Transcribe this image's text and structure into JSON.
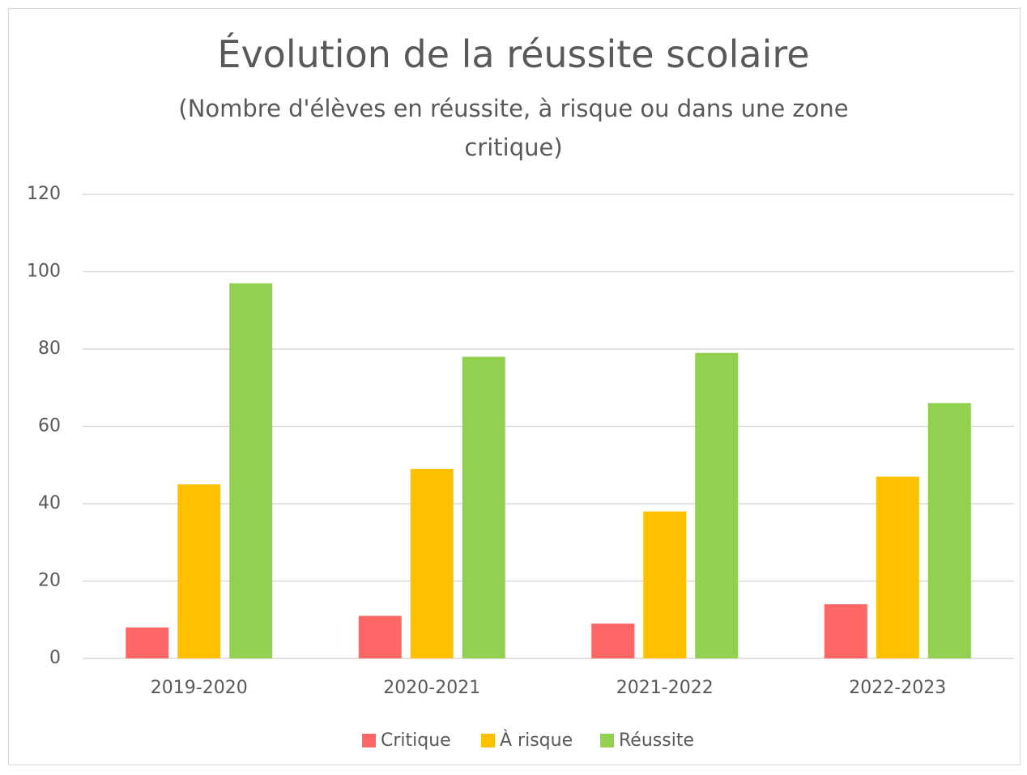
{
  "chart_data": {
    "type": "bar",
    "title": "Évolution de la réussite scolaire",
    "subtitle": "(Nombre d'élèves en réussite, à risque ou dans une zone critique)",
    "categories": [
      "2019-2020",
      "2020-2021",
      "2021-2022",
      "2022-2023"
    ],
    "series": [
      {
        "name": "Critique",
        "color": "#ff6666",
        "values": [
          8,
          11,
          9,
          14
        ]
      },
      {
        "name": "À risque",
        "color": "#ffc000",
        "values": [
          45,
          49,
          38,
          47
        ]
      },
      {
        "name": "Réussite",
        "color": "#92d050",
        "values": [
          97,
          78,
          79,
          66
        ]
      }
    ],
    "ylim": [
      0,
      120
    ],
    "yticks": [
      0,
      20,
      40,
      60,
      80,
      100,
      120
    ],
    "grid": true,
    "legend": "bottom"
  }
}
